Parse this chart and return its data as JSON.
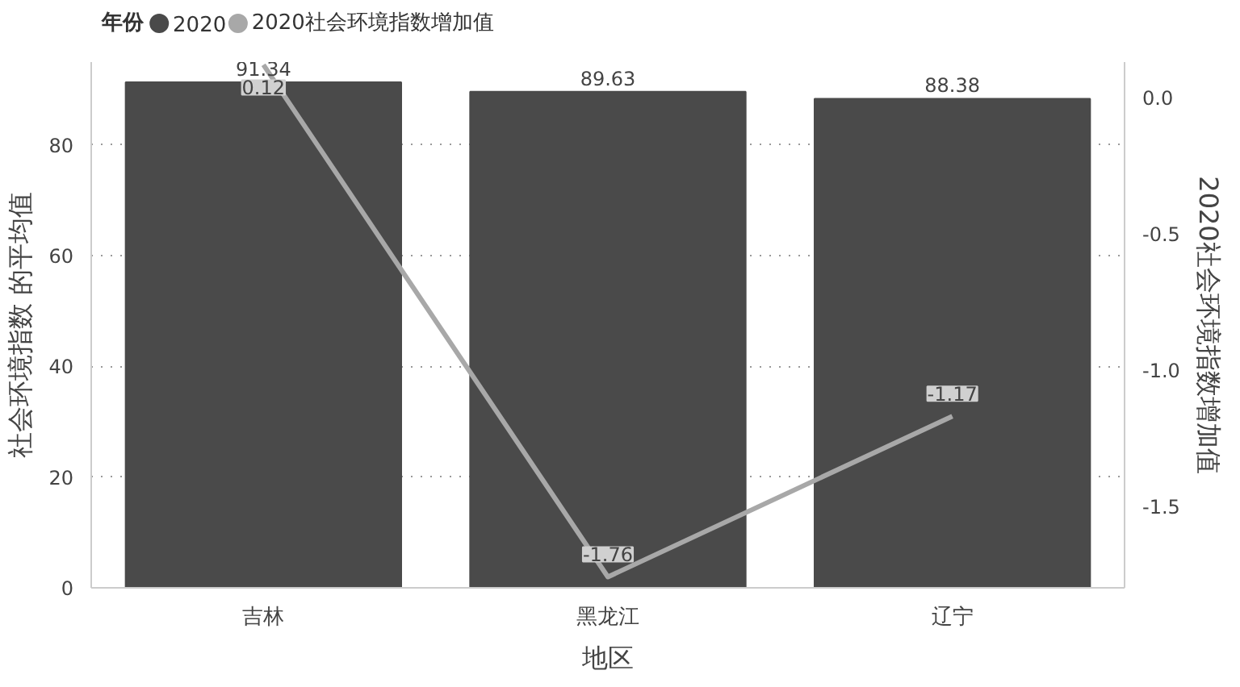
{
  "chart_data": {
    "type": "bar",
    "xlabel": "地区",
    "ylabel": "社会环境指数 的平均值",
    "y2label": "2020社会环境指数增加值",
    "legend_title": "年份",
    "categories": [
      "吉林",
      "黑龙江",
      "辽宁"
    ],
    "series": [
      {
        "name": "2020",
        "color": "#4a4a4a",
        "values": [
          91.34,
          89.63,
          88.38
        ]
      },
      {
        "name": "2020社会环境指数增加值",
        "type": "line",
        "axis": "y2",
        "color": "#a8a8a8",
        "values": [
          0.12,
          -1.76,
          -1.17
        ]
      }
    ],
    "ylim": [
      0,
      95
    ],
    "yticks": [
      0,
      20,
      40,
      60,
      80
    ],
    "y2lim": [
      -1.8,
      0.13
    ],
    "y2ticks": [
      {
        "value": 0,
        "label": "0.0"
      },
      {
        "value": -0.5,
        "label": "-0.5"
      },
      {
        "value": -1,
        "label": "-1.0"
      },
      {
        "value": -1.5,
        "label": "-1.5"
      }
    ],
    "grid": "y",
    "legend": "top left",
    "data_labels": true,
    "line_style": "solid"
  }
}
